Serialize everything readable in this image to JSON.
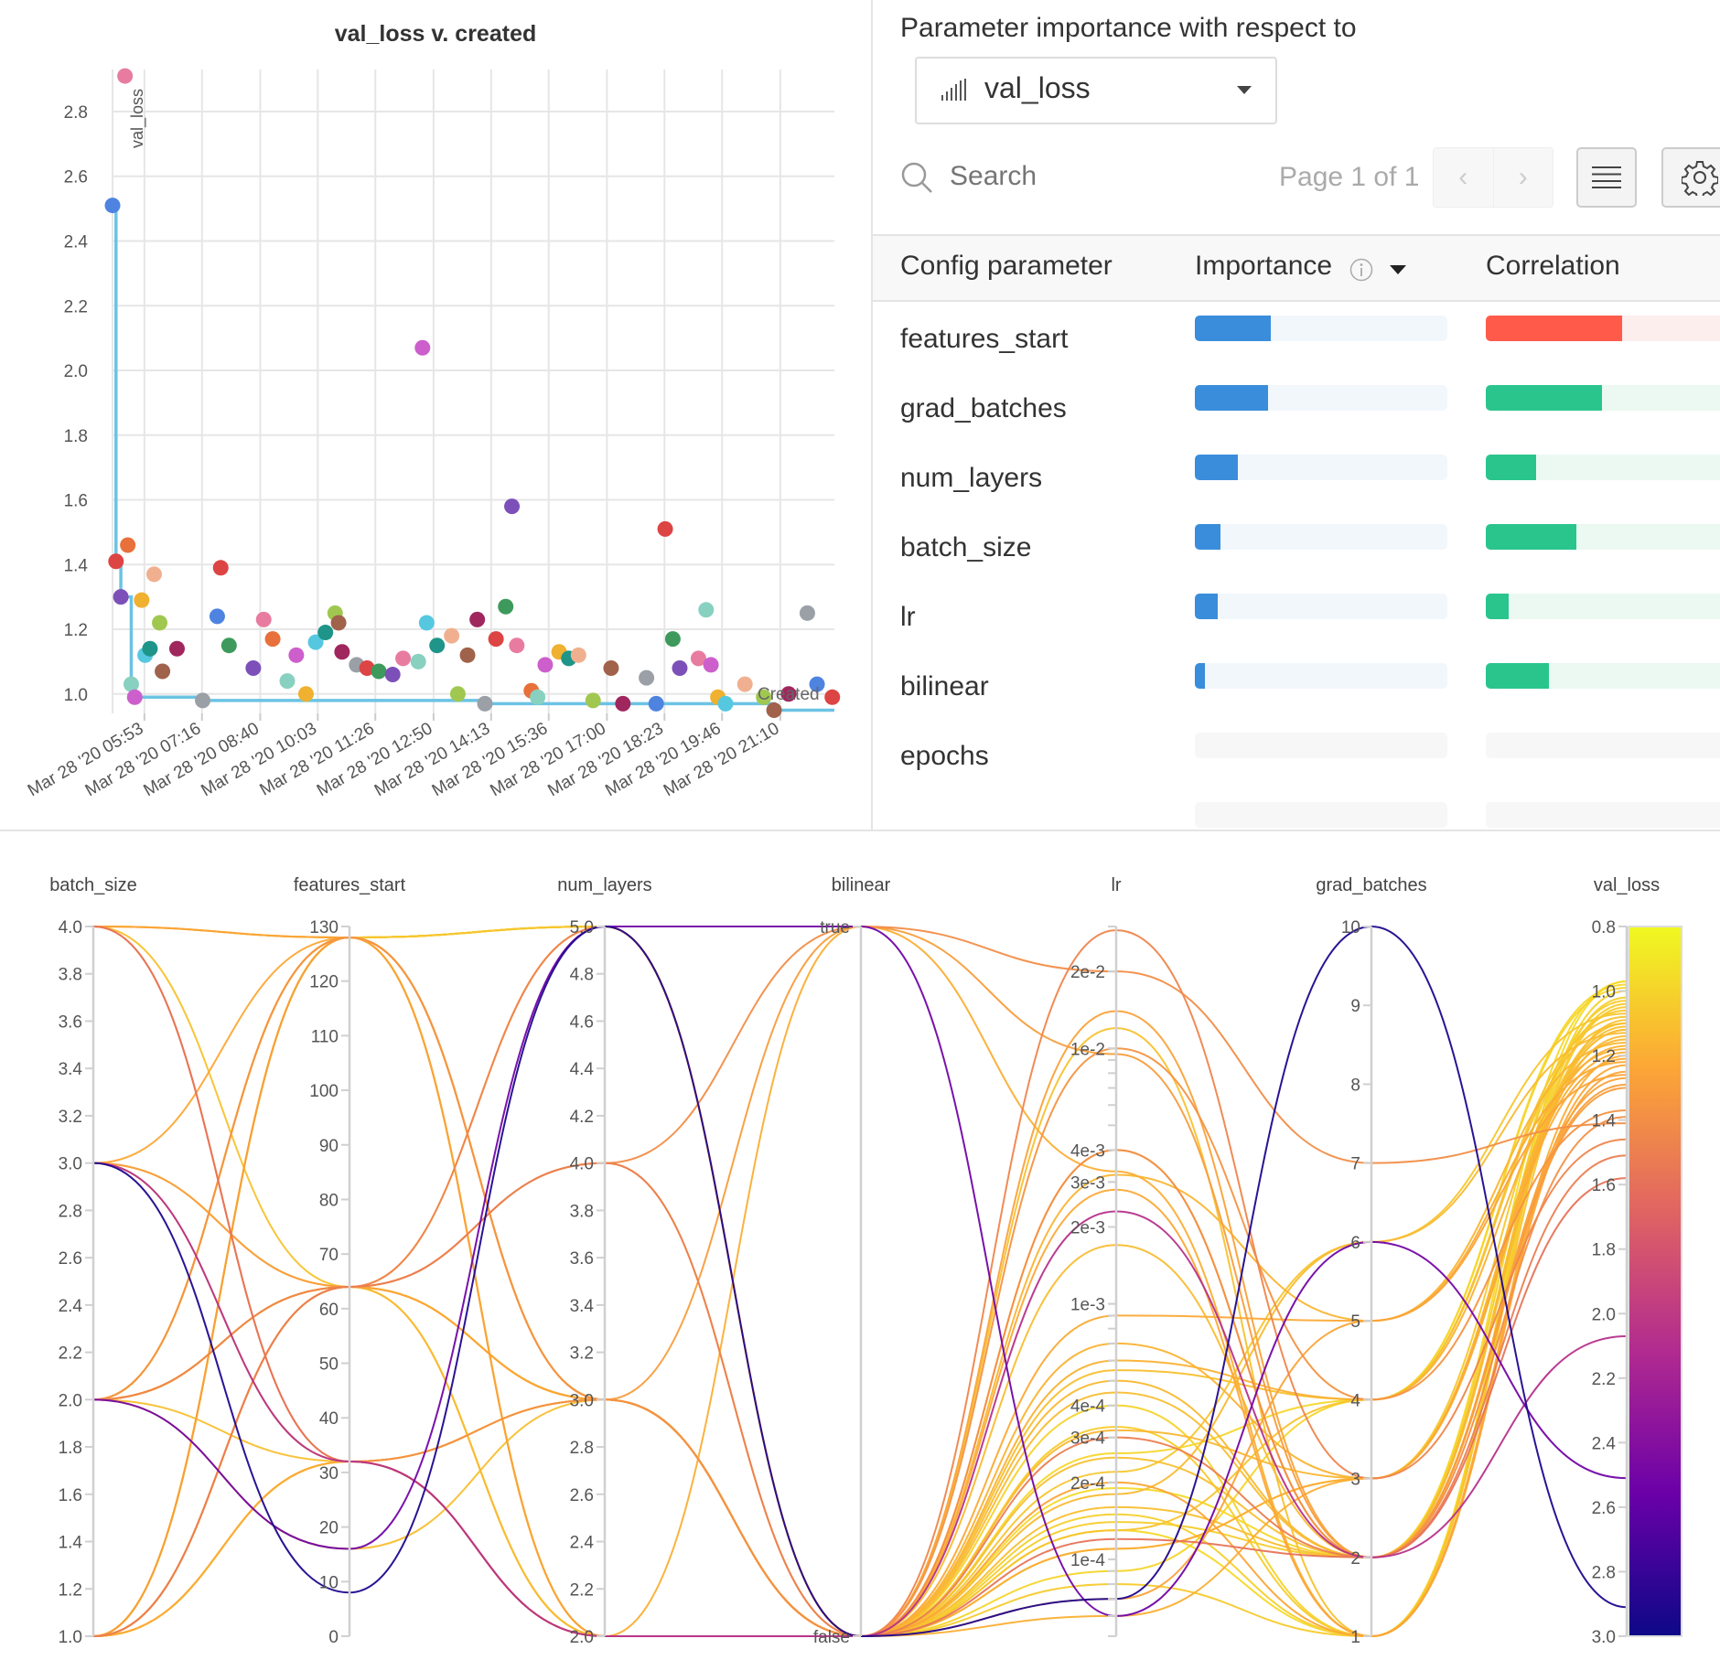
{
  "scatter_panel": {
    "title": "val_loss v. created",
    "y_axis_label": "val_loss",
    "x_axis_label": "Created"
  },
  "importance_panel": {
    "title": "Parameter importance with respect to",
    "metric_select": {
      "value": "val_loss",
      "icon": "bar-chart-icon"
    },
    "search": {
      "placeholder": "Search",
      "value": ""
    },
    "pagination": {
      "text": "Page 1 of 1",
      "prev_icon": "chevron-left-icon",
      "next_icon": "chevron-right-icon"
    },
    "toolbar": {
      "menu_icon": "hamburger-menu-icon",
      "settings_icon": "gear-icon"
    },
    "columns": {
      "parameter": "Config parameter",
      "importance": "Importance",
      "correlation": "Correlation"
    },
    "colors": {
      "importance": "#3a8ddb",
      "positive_correlation": "#ff5a4a",
      "negative_correlation": "#2ac58d"
    },
    "rows": [
      {
        "parameter": "features_start",
        "importance": 0.3,
        "correlation": 0.54
      },
      {
        "parameter": "grad_batches",
        "importance": 0.29,
        "correlation": -0.46
      },
      {
        "parameter": "num_layers",
        "importance": 0.17,
        "correlation": -0.2
      },
      {
        "parameter": "batch_size",
        "importance": 0.1,
        "correlation": -0.36
      },
      {
        "parameter": "lr",
        "importance": 0.09,
        "correlation": -0.09
      },
      {
        "parameter": "bilinear",
        "importance": 0.04,
        "correlation": -0.25
      },
      {
        "parameter": "epochs",
        "importance": null,
        "correlation": null
      }
    ]
  },
  "chart_data": [
    {
      "type": "scatter",
      "title": "val_loss v. created",
      "xlabel": "Created",
      "ylabel": "val_loss",
      "x_date": "Mar 28 '20",
      "xlim": [
        "05:07",
        "22:28"
      ],
      "ylim": [
        0.94,
        2.93
      ],
      "x_ticks": [
        "05:53",
        "07:16",
        "08:40",
        "10:03",
        "11:26",
        "12:50",
        "14:13",
        "15:36",
        "17:00",
        "18:23",
        "19:46",
        "21:10"
      ],
      "x_tick_labels": [
        "Mar 28 '20 05:53",
        "Mar 28 '20 07:16",
        "Mar 28 '20 08:40",
        "Mar 28 '20 10:03",
        "Mar 28 '20 11:26",
        "Mar 28 '20 12:50",
        "Mar 28 '20 14:13",
        "Mar 28 '20 15:36",
        "Mar 28 '20 17:00",
        "Mar 28 '20 18:23",
        "Mar 28 '20 19:46",
        "Mar 28 '20 21:10"
      ],
      "y_ticks": [
        1.0,
        1.2,
        1.4,
        1.6,
        1.8,
        2.0,
        2.2,
        2.4,
        2.6,
        2.8
      ],
      "y_tick_labels": [
        "1.0",
        "1.2",
        "1.4",
        "1.6",
        "1.8",
        "2.0",
        "2.2",
        "2.4",
        "2.6",
        "2.8"
      ],
      "grid": true,
      "running_min_line": {
        "color": "#6cc3e3"
      },
      "points": [
        {
          "x": "05:07",
          "y": 2.51,
          "color": "#4e83e0"
        },
        {
          "x": "05:12",
          "y": 1.41,
          "color": "#dd4444"
        },
        {
          "x": "05:19",
          "y": 1.3,
          "color": "#7c50b8"
        },
        {
          "x": "05:25",
          "y": 2.91,
          "color": "#e87ca0"
        },
        {
          "x": "05:29",
          "y": 1.46,
          "color": "#e8703a"
        },
        {
          "x": "05:34",
          "y": 1.03,
          "color": "#88d1c0"
        },
        {
          "x": "05:39",
          "y": 0.99,
          "color": "#cc5fcc"
        },
        {
          "x": "05:49",
          "y": 1.29,
          "color": "#f0b030"
        },
        {
          "x": "05:54",
          "y": 1.12,
          "color": "#55c8e0"
        },
        {
          "x": "06:01",
          "y": 1.14,
          "color": "#1f9488"
        },
        {
          "x": "06:07",
          "y": 1.37,
          "color": "#f0b090"
        },
        {
          "x": "06:15",
          "y": 1.22,
          "color": "#a0c850"
        },
        {
          "x": "06:19",
          "y": 1.07,
          "color": "#a0624a"
        },
        {
          "x": "06:40",
          "y": 1.14,
          "color": "#a0265e"
        },
        {
          "x": "07:17",
          "y": 0.98,
          "color": "#9aa0a6"
        },
        {
          "x": "07:38",
          "y": 1.24,
          "color": "#4e83e0"
        },
        {
          "x": "07:43",
          "y": 1.39,
          "color": "#dd4444"
        },
        {
          "x": "07:55",
          "y": 1.15,
          "color": "#3d9a5c"
        },
        {
          "x": "08:30",
          "y": 1.08,
          "color": "#7c50b8"
        },
        {
          "x": "08:45",
          "y": 1.23,
          "color": "#e87ca0"
        },
        {
          "x": "08:58",
          "y": 1.17,
          "color": "#e8703a"
        },
        {
          "x": "09:19",
          "y": 1.04,
          "color": "#88d1c0"
        },
        {
          "x": "09:32",
          "y": 1.12,
          "color": "#cc5fcc"
        },
        {
          "x": "09:46",
          "y": 1.0,
          "color": "#f0b030"
        },
        {
          "x": "10:00",
          "y": 1.16,
          "color": "#55c8e0"
        },
        {
          "x": "10:14",
          "y": 1.19,
          "color": "#1f9488"
        },
        {
          "x": "10:28",
          "y": 1.25,
          "color": "#a0c850"
        },
        {
          "x": "10:33",
          "y": 1.22,
          "color": "#a0624a"
        },
        {
          "x": "10:38",
          "y": 1.13,
          "color": "#a0265e"
        },
        {
          "x": "10:59",
          "y": 1.09,
          "color": "#9aa0a6"
        },
        {
          "x": "11:14",
          "y": 1.08,
          "color": "#dd4444"
        },
        {
          "x": "11:31",
          "y": 1.07,
          "color": "#3d9a5c"
        },
        {
          "x": "11:51",
          "y": 1.06,
          "color": "#7c50b8"
        },
        {
          "x": "12:06",
          "y": 1.11,
          "color": "#e87ca0"
        },
        {
          "x": "12:28",
          "y": 1.1,
          "color": "#88d1c0"
        },
        {
          "x": "12:34",
          "y": 2.07,
          "color": "#cc5fcc"
        },
        {
          "x": "12:40",
          "y": 1.22,
          "color": "#55c8e0"
        },
        {
          "x": "12:55",
          "y": 1.15,
          "color": "#1f9488"
        },
        {
          "x": "13:16",
          "y": 1.18,
          "color": "#f0b090"
        },
        {
          "x": "13:25",
          "y": 1.0,
          "color": "#a0c850"
        },
        {
          "x": "13:39",
          "y": 1.12,
          "color": "#a0624a"
        },
        {
          "x": "13:53",
          "y": 1.23,
          "color": "#a0265e"
        },
        {
          "x": "14:04",
          "y": 0.97,
          "color": "#9aa0a6"
        },
        {
          "x": "14:20",
          "y": 1.17,
          "color": "#dd4444"
        },
        {
          "x": "14:34",
          "y": 1.27,
          "color": "#3d9a5c"
        },
        {
          "x": "14:43",
          "y": 1.58,
          "color": "#7c50b8"
        },
        {
          "x": "14:50",
          "y": 1.15,
          "color": "#e87ca0"
        },
        {
          "x": "15:11",
          "y": 1.01,
          "color": "#e8703a"
        },
        {
          "x": "15:20",
          "y": 0.99,
          "color": "#88d1c0"
        },
        {
          "x": "15:31",
          "y": 1.09,
          "color": "#cc5fcc"
        },
        {
          "x": "15:51",
          "y": 1.13,
          "color": "#f0b030"
        },
        {
          "x": "16:05",
          "y": 1.11,
          "color": "#1f9488"
        },
        {
          "x": "16:19",
          "y": 1.12,
          "color": "#f0b090"
        },
        {
          "x": "16:40",
          "y": 0.98,
          "color": "#a0c850"
        },
        {
          "x": "17:06",
          "y": 1.08,
          "color": "#a0624a"
        },
        {
          "x": "17:23",
          "y": 0.97,
          "color": "#a0265e"
        },
        {
          "x": "17:57",
          "y": 1.05,
          "color": "#9aa0a6"
        },
        {
          "x": "18:11",
          "y": 0.97,
          "color": "#4e83e0"
        },
        {
          "x": "18:24",
          "y": 1.51,
          "color": "#dd4444"
        },
        {
          "x": "18:35",
          "y": 1.17,
          "color": "#3d9a5c"
        },
        {
          "x": "18:45",
          "y": 1.08,
          "color": "#7c50b8"
        },
        {
          "x": "19:12",
          "y": 1.11,
          "color": "#e87ca0"
        },
        {
          "x": "19:23",
          "y": 1.26,
          "color": "#88d1c0"
        },
        {
          "x": "19:30",
          "y": 1.09,
          "color": "#cc5fcc"
        },
        {
          "x": "19:40",
          "y": 0.99,
          "color": "#f0b030"
        },
        {
          "x": "19:51",
          "y": 0.97,
          "color": "#55c8e0"
        },
        {
          "x": "20:19",
          "y": 1.03,
          "color": "#f0b090"
        },
        {
          "x": "20:46",
          "y": 0.99,
          "color": "#a0c850"
        },
        {
          "x": "21:01",
          "y": 0.95,
          "color": "#a0624a"
        },
        {
          "x": "21:22",
          "y": 1.0,
          "color": "#a0265e"
        },
        {
          "x": "21:49",
          "y": 1.25,
          "color": "#9aa0a6"
        },
        {
          "x": "22:03",
          "y": 1.03,
          "color": "#4e83e0"
        },
        {
          "x": "22:25",
          "y": 0.99,
          "color": "#dd4444"
        }
      ]
    },
    {
      "type": "parallel_coordinates",
      "color_by": "val_loss",
      "colormap": [
        "#0d0887",
        "#6a00a8",
        "#b12a90",
        "#e16462",
        "#fca636",
        "#f0f921"
      ],
      "axes": [
        {
          "name": "batch_size",
          "scale": "linear",
          "range": [
            1.0,
            4.0
          ],
          "tick_labels": [
            "1.0",
            "1.2",
            "1.4",
            "1.6",
            "1.8",
            "2.0",
            "2.2",
            "2.4",
            "2.6",
            "2.8",
            "3.0",
            "3.2",
            "3.4",
            "3.6",
            "3.8",
            "4.0"
          ]
        },
        {
          "name": "features_start",
          "scale": "linear",
          "range": [
            0,
            130
          ],
          "tick_labels": [
            "0",
            "10",
            "20",
            "30",
            "40",
            "50",
            "60",
            "70",
            "80",
            "90",
            "100",
            "110",
            "120",
            "130"
          ]
        },
        {
          "name": "num_layers",
          "scale": "linear",
          "range": [
            2.0,
            5.0
          ],
          "tick_labels": [
            "2.0",
            "2.2",
            "2.4",
            "2.6",
            "2.8",
            "3.0",
            "3.2",
            "3.4",
            "3.6",
            "3.8",
            "4.0",
            "4.2",
            "4.4",
            "4.6",
            "4.8",
            "5.0"
          ]
        },
        {
          "name": "bilinear",
          "scale": "categorical",
          "categories": [
            "false",
            "true"
          ],
          "tick_labels": [
            "false",
            "true"
          ]
        },
        {
          "name": "lr",
          "scale": "log",
          "range": [
            5e-05,
            0.03
          ],
          "tick_labels": [
            "1e-4",
            "2e-4",
            "3e-4",
            "4e-4",
            "1e-3",
            "2e-3",
            "3e-3",
            "4e-3",
            "1e-2",
            "2e-2"
          ]
        },
        {
          "name": "grad_batches",
          "scale": "linear",
          "range": [
            1,
            10
          ],
          "tick_labels": [
            "1",
            "2",
            "3",
            "4",
            "5",
            "6",
            "7",
            "8",
            "9",
            "10"
          ]
        },
        {
          "name": "val_loss",
          "scale": "linear",
          "range": [
            3.0,
            0.8
          ],
          "tick_labels": [
            "3.0",
            "2.8",
            "2.6",
            "2.4",
            "2.2",
            "2.0",
            "1.8",
            "1.6",
            "1.4",
            "1.2",
            "1.0",
            "0.8"
          ]
        }
      ],
      "runs": [
        [
          3,
          8,
          5,
          0,
          7e-05,
          10,
          2.91
        ],
        [
          2,
          16,
          5,
          1,
          6e-05,
          6,
          2.51
        ],
        [
          3,
          32,
          2,
          0,
          0.0023,
          2,
          2.07
        ],
        [
          4,
          32,
          2,
          0,
          0.00012,
          2,
          1.58
        ],
        [
          1,
          64,
          4,
          1,
          0.02,
          7,
          1.41
        ],
        [
          1,
          64,
          4,
          0,
          0.0003,
          2,
          1.51
        ],
        [
          2,
          64,
          5,
          0,
          0.029,
          3,
          1.46
        ],
        [
          4,
          32,
          3,
          0,
          0.004,
          2,
          1.39
        ],
        [
          2,
          128,
          3,
          0,
          0.01,
          4,
          1.37
        ],
        [
          1,
          128,
          5,
          0,
          0.00015,
          1,
          1.02
        ],
        [
          1,
          128,
          3,
          0,
          0.00025,
          2,
          1.1
        ],
        [
          1,
          128,
          2,
          0,
          8e-05,
          1,
          1.05
        ],
        [
          1,
          128,
          2,
          0,
          0.00032,
          3,
          1.15
        ],
        [
          1,
          64,
          3,
          0,
          0.00013,
          4,
          1.08
        ],
        [
          1,
          32,
          3,
          0,
          0.00045,
          2,
          1.12
        ],
        [
          1,
          32,
          2,
          1,
          0.0033,
          1,
          1.2
        ],
        [
          2,
          64,
          4,
          0,
          0.0006,
          4,
          1.18
        ],
        [
          2,
          64,
          3,
          0,
          0.0009,
          5,
          1.22
        ],
        [
          2,
          64,
          2,
          0,
          0.00018,
          6,
          1.13
        ],
        [
          2,
          128,
          5,
          0,
          0.00011,
          3,
          1.06
        ],
        [
          3,
          64,
          3,
          0,
          0.0002,
          1,
          1.25
        ],
        [
          3,
          32,
          2,
          0,
          0.0005,
          2,
          1.14
        ],
        [
          4,
          64,
          2,
          0,
          0.012,
          1,
          1.09
        ],
        [
          4,
          128,
          3,
          0,
          0.0007,
          3,
          1.17
        ],
        [
          3,
          128,
          2,
          0,
          0.0028,
          1,
          1.23
        ],
        [
          2,
          16,
          3,
          0,
          0.00016,
          2,
          1.11
        ],
        [
          1,
          128,
          5,
          0,
          9e-05,
          4,
          0.99
        ],
        [
          1,
          128,
          5,
          0,
          0.0004,
          1,
          1.0
        ],
        [
          2,
          128,
          5,
          0,
          0.00014,
          2,
          1.03
        ],
        [
          1,
          64,
          3,
          0,
          0.0032,
          5,
          1.16
        ],
        [
          1,
          32,
          2,
          0,
          6e-05,
          3,
          1.19
        ],
        [
          2,
          128,
          2,
          0,
          0.014,
          2,
          1.27
        ],
        [
          4,
          128,
          5,
          0,
          0.00022,
          6,
          1.07
        ],
        [
          1,
          128,
          3,
          1,
          0.0095,
          2,
          1.3
        ],
        [
          2,
          64,
          3,
          0,
          0.00013,
          1,
          0.97
        ],
        [
          1,
          128,
          2,
          0,
          0.00026,
          4,
          0.98
        ],
        [
          3,
          64,
          5,
          0,
          0.004,
          2,
          1.29
        ],
        [
          1,
          32,
          3,
          0,
          0.00011,
          3,
          1.21
        ],
        [
          2,
          128,
          5,
          0,
          0.00033,
          1,
          1.04
        ],
        [
          1,
          64,
          2,
          0,
          0.0017,
          2,
          1.12
        ],
        [
          4,
          128,
          3,
          0,
          7e-05,
          5,
          1.26
        ],
        [
          1,
          128,
          5,
          0,
          0.00019,
          2,
          0.97
        ],
        [
          2,
          32,
          3,
          0,
          0.00055,
          4,
          1.1
        ]
      ]
    }
  ]
}
